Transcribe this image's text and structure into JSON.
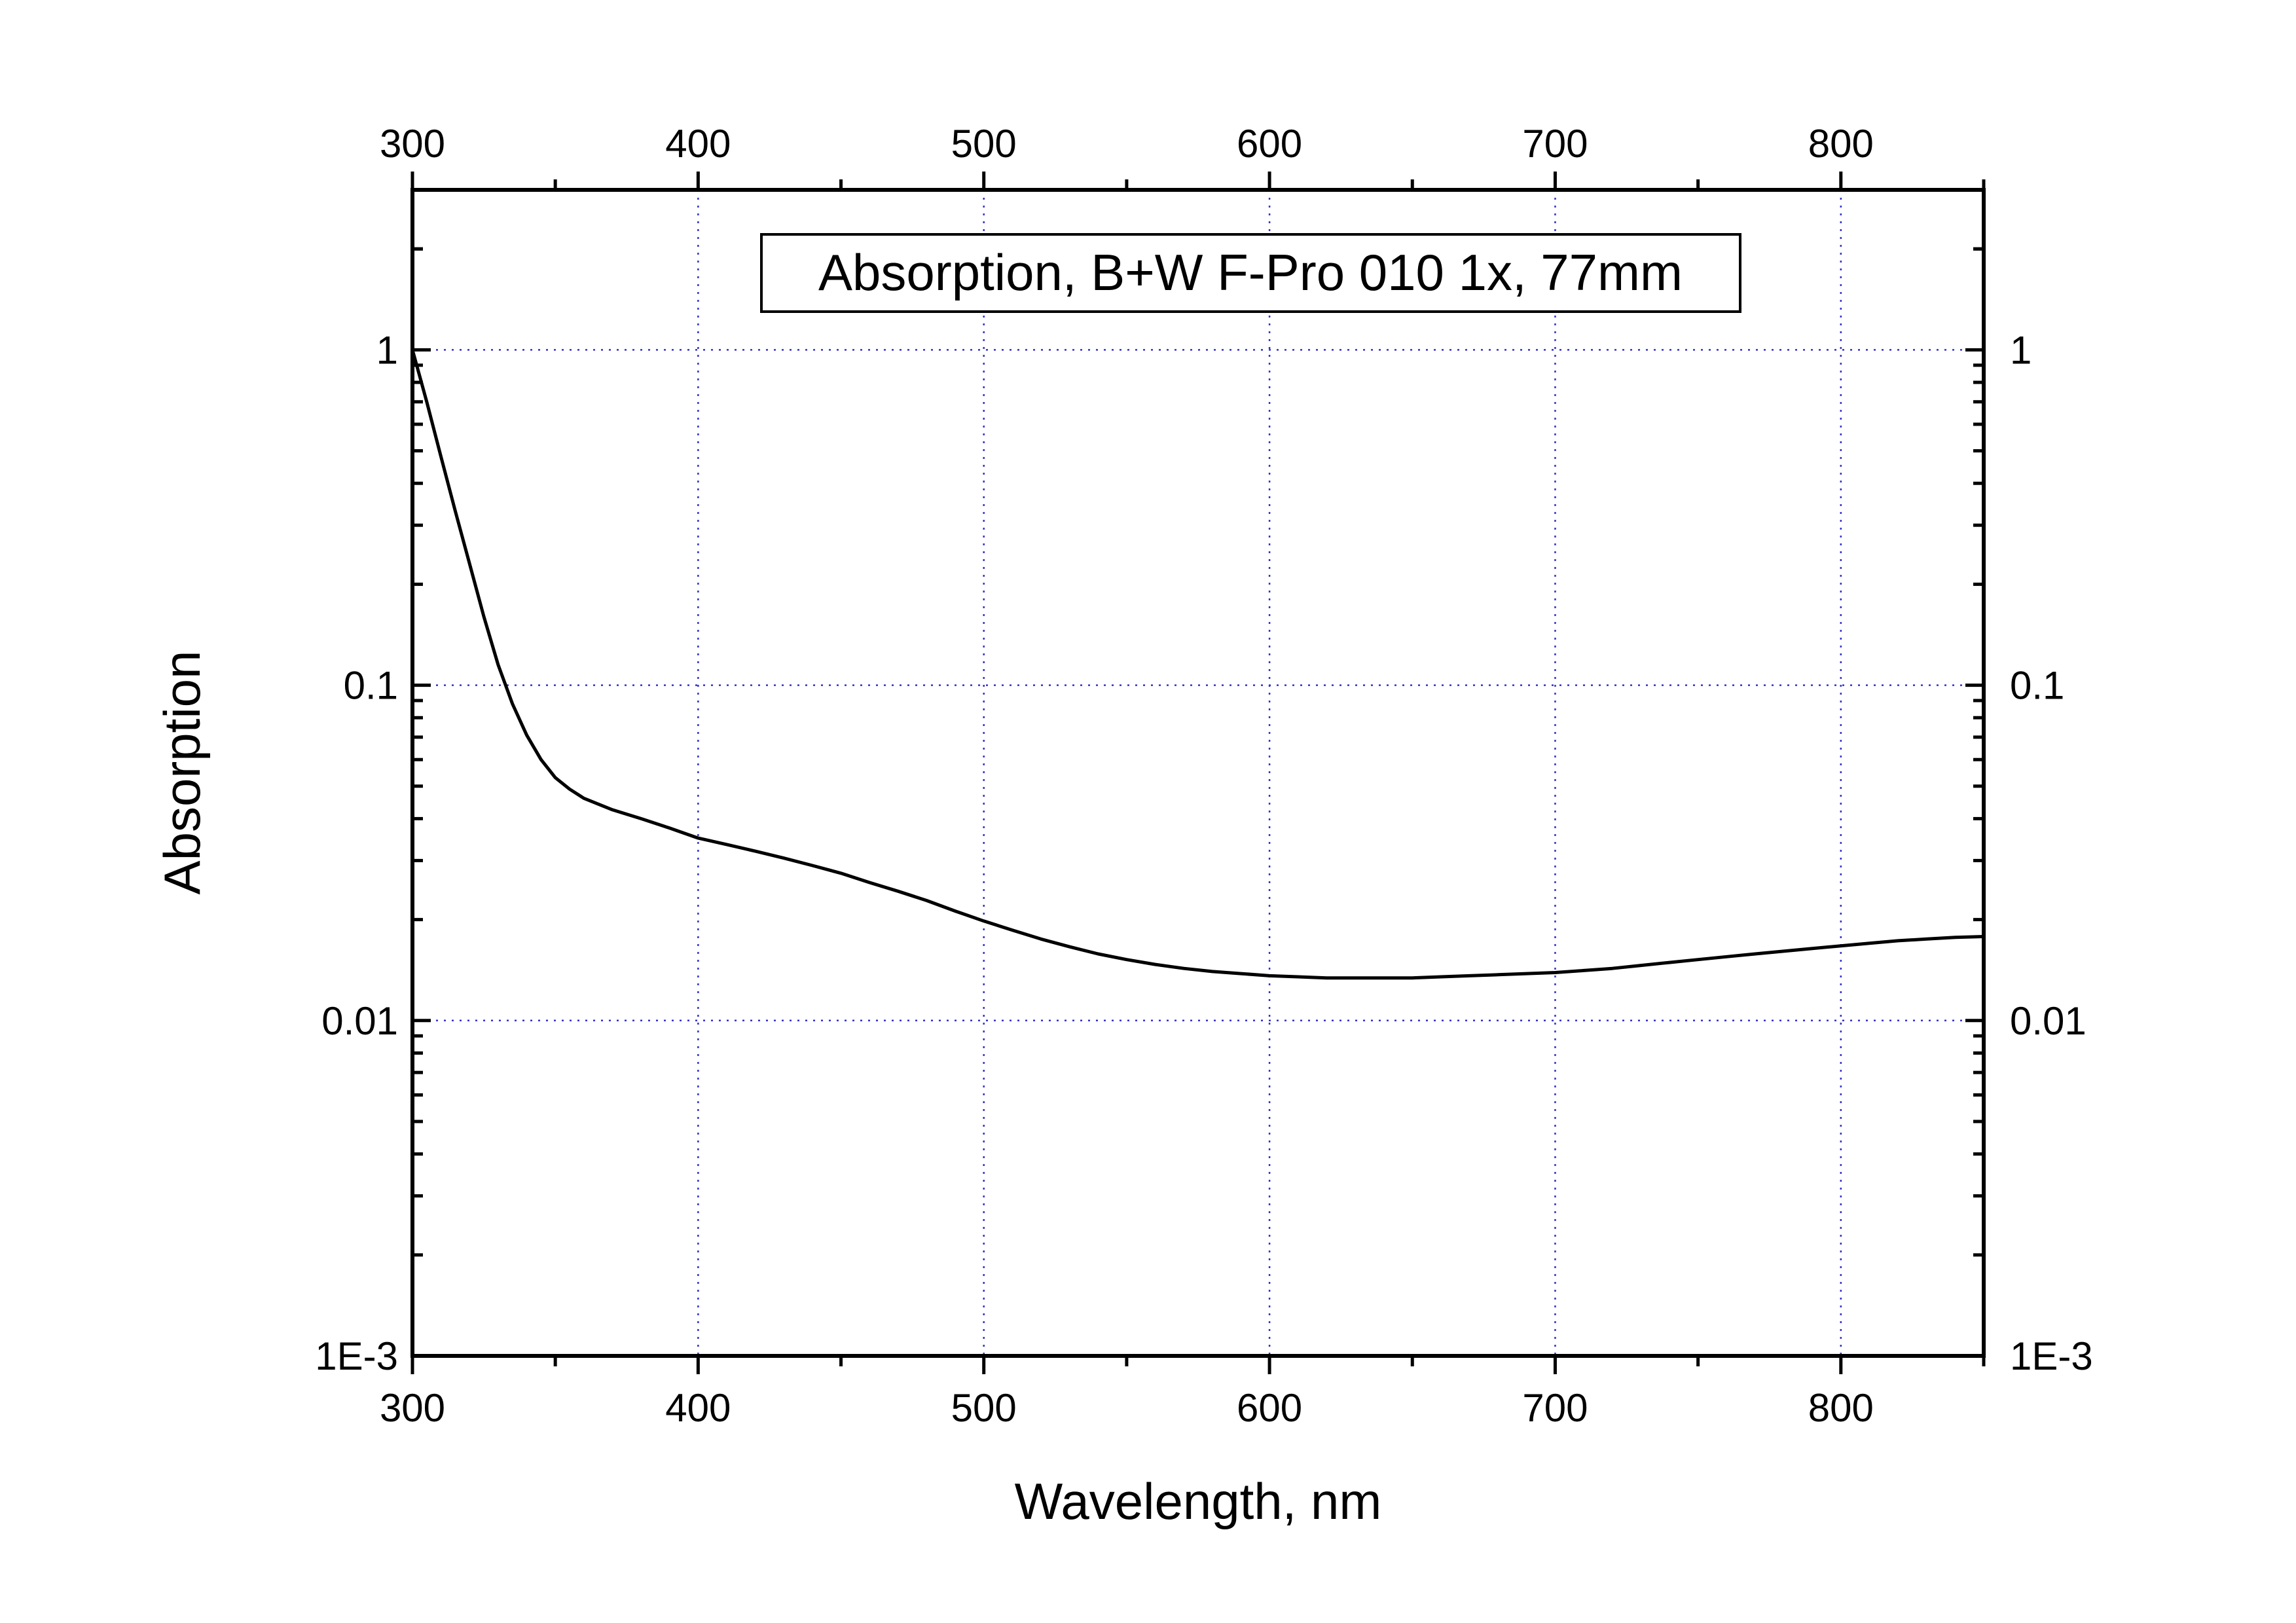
{
  "chart_data": {
    "type": "line",
    "legend_text": "Absorption, B+W F-Pro 010 1x, 77mm",
    "legend_position": "top-center",
    "xlabel": "Wavelength, nm",
    "ylabel": "Absorption",
    "xlim": [
      300,
      850
    ],
    "ylim": [
      0.001,
      3
    ],
    "yscale": "log",
    "grid": true,
    "x_ticks": [
      300,
      400,
      500,
      600,
      700,
      800
    ],
    "x_tick_labels": [
      "300",
      "400",
      "500",
      "600",
      "700",
      "800"
    ],
    "y_ticks": [
      0.001,
      0.01,
      0.1,
      1
    ],
    "y_tick_labels": [
      "1E-3",
      "0.01",
      "0.1",
      "1"
    ],
    "line_color": "#000000",
    "grid_color": "#3333cc",
    "series": [
      {
        "name": "Absorption, B+W F-Pro 010 1x, 77mm",
        "x": [
          300,
          305,
          310,
          315,
          320,
          325,
          330,
          335,
          340,
          345,
          350,
          355,
          360,
          370,
          380,
          390,
          400,
          410,
          420,
          430,
          440,
          450,
          460,
          470,
          480,
          490,
          500,
          510,
          520,
          530,
          540,
          550,
          560,
          570,
          580,
          590,
          600,
          610,
          620,
          630,
          640,
          650,
          660,
          670,
          680,
          690,
          700,
          710,
          720,
          730,
          740,
          750,
          760,
          770,
          780,
          790,
          800,
          810,
          820,
          830,
          840,
          850
        ],
        "y": [
          1.0,
          0.7,
          0.48,
          0.33,
          0.23,
          0.16,
          0.115,
          0.088,
          0.071,
          0.06,
          0.053,
          0.049,
          0.046,
          0.0425,
          0.04,
          0.0375,
          0.035,
          0.0335,
          0.032,
          0.0305,
          0.029,
          0.0275,
          0.0258,
          0.0243,
          0.0228,
          0.0212,
          0.0198,
          0.0186,
          0.0175,
          0.0166,
          0.0158,
          0.0152,
          0.0147,
          0.0143,
          0.014,
          0.0138,
          0.0136,
          0.0135,
          0.0134,
          0.0134,
          0.0134,
          0.0134,
          0.0135,
          0.0136,
          0.0137,
          0.0138,
          0.0139,
          0.0141,
          0.0143,
          0.0146,
          0.0149,
          0.0152,
          0.0155,
          0.0158,
          0.0161,
          0.0164,
          0.0167,
          0.017,
          0.0173,
          0.0175,
          0.0177,
          0.0178
        ]
      }
    ]
  }
}
